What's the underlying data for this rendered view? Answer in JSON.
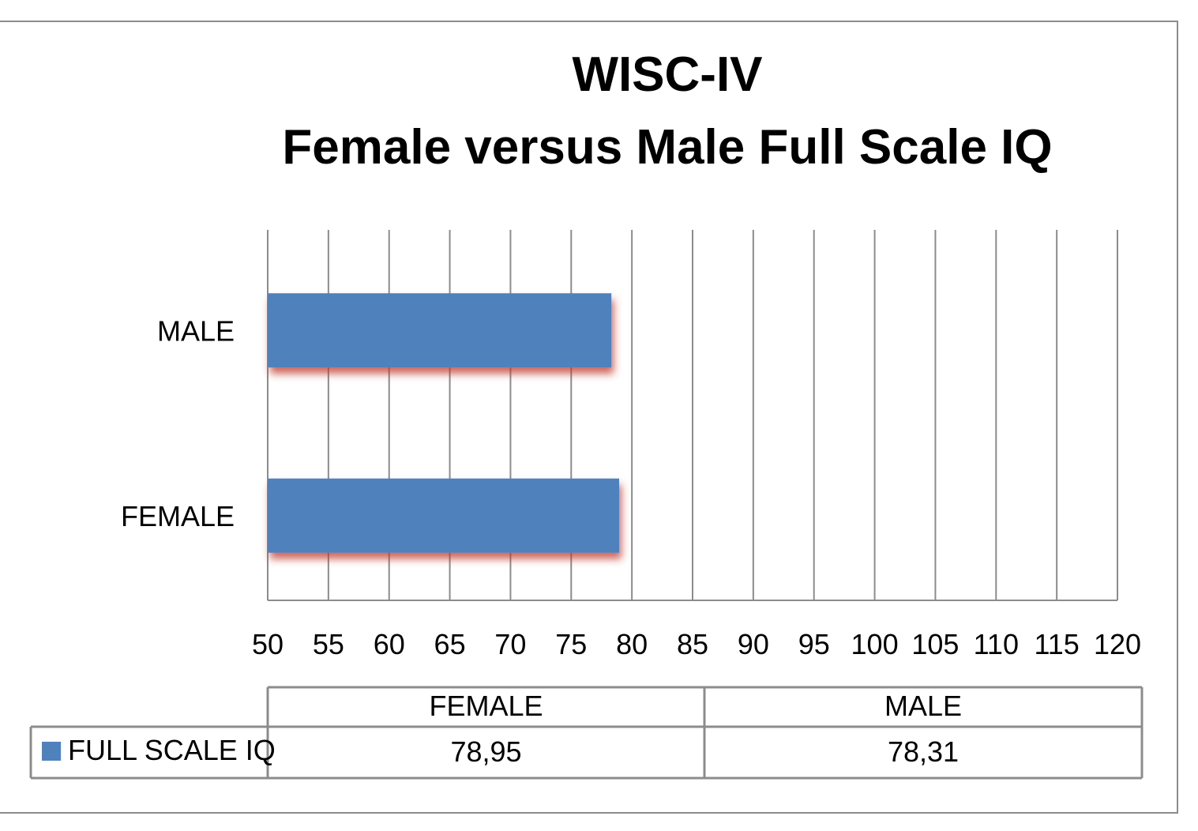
{
  "chart_data": {
    "type": "bar",
    "orientation": "horizontal",
    "title": "WISC-IV",
    "subtitle": "Female versus Male Full Scale IQ",
    "categories": [
      "FEMALE",
      "MALE"
    ],
    "series": [
      {
        "name": "FULL SCALE IQ",
        "values": [
          78.95,
          78.31
        ],
        "color": "#4f81bd"
      }
    ],
    "xlim": [
      50,
      120
    ],
    "xticks": [
      50,
      55,
      60,
      65,
      70,
      75,
      80,
      85,
      90,
      95,
      100,
      105,
      110,
      115,
      120
    ],
    "grid": "vertical",
    "legend": "data-table-bottom",
    "data_table": {
      "headers": [
        "FEMALE",
        "MALE"
      ],
      "rows": [
        {
          "label": "FULL SCALE IQ",
          "cells": [
            "78,95",
            "78,31"
          ]
        }
      ]
    }
  }
}
